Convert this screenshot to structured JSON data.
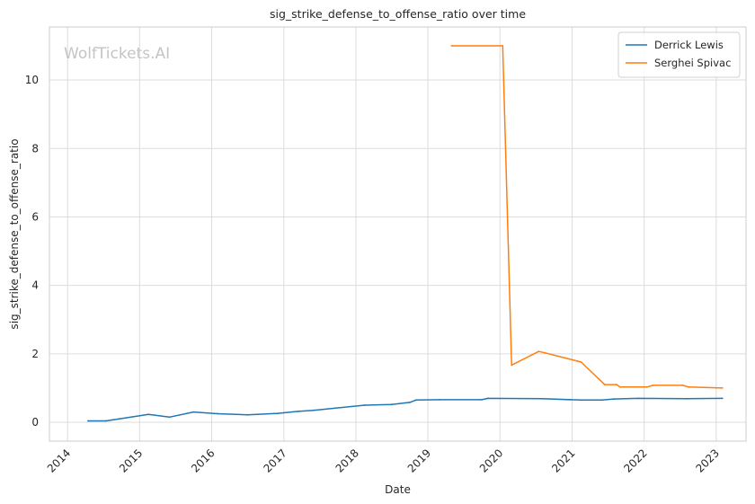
{
  "chart_data": {
    "type": "line",
    "title": "sig_strike_defense_to_offense_ratio over time",
    "xlabel": "Date",
    "ylabel": "sig_strike_defense_to_offense_ratio",
    "watermark": "WolfTickets.AI",
    "xlim": [
      "2013-10-01",
      "2023-06-01"
    ],
    "ylim": [
      -0.55,
      11.55
    ],
    "x_ticks": [
      "2014",
      "2015",
      "2016",
      "2017",
      "2018",
      "2019",
      "2020",
      "2021",
      "2022",
      "2023"
    ],
    "y_ticks": [
      0,
      2,
      4,
      6,
      8,
      10
    ],
    "grid": true,
    "legend_position": "top-right",
    "series": [
      {
        "name": "Derrick Lewis",
        "color": "#1f77b4",
        "points": [
          {
            "x": "2014-04-15",
            "y": 0.04
          },
          {
            "x": "2014-07-15",
            "y": 0.04
          },
          {
            "x": "2014-09-20",
            "y": 0.1
          },
          {
            "x": "2015-02-15",
            "y": 0.23
          },
          {
            "x": "2015-06-01",
            "y": 0.15
          },
          {
            "x": "2015-10-01",
            "y": 0.3
          },
          {
            "x": "2016-02-01",
            "y": 0.25
          },
          {
            "x": "2016-07-01",
            "y": 0.22
          },
          {
            "x": "2016-12-01",
            "y": 0.26
          },
          {
            "x": "2017-03-15",
            "y": 0.32
          },
          {
            "x": "2017-06-01",
            "y": 0.35
          },
          {
            "x": "2018-02-15",
            "y": 0.5
          },
          {
            "x": "2018-07-01",
            "y": 0.52
          },
          {
            "x": "2018-10-01",
            "y": 0.58
          },
          {
            "x": "2018-11-01",
            "y": 0.65
          },
          {
            "x": "2019-03-01",
            "y": 0.66
          },
          {
            "x": "2019-10-01",
            "y": 0.66
          },
          {
            "x": "2019-11-01",
            "y": 0.7
          },
          {
            "x": "2020-08-01",
            "y": 0.69
          },
          {
            "x": "2021-02-15",
            "y": 0.65
          },
          {
            "x": "2021-06-01",
            "y": 0.65
          },
          {
            "x": "2021-08-01",
            "y": 0.68
          },
          {
            "x": "2021-12-01",
            "y": 0.7
          },
          {
            "x": "2022-08-01",
            "y": 0.69
          },
          {
            "x": "2023-02-01",
            "y": 0.7
          }
        ]
      },
      {
        "name": "Serghei Spivac",
        "color": "#ff7f0e",
        "points": [
          {
            "x": "2019-05-01",
            "y": 11.0
          },
          {
            "x": "2020-01-15",
            "y": 11.0
          },
          {
            "x": "2020-02-29",
            "y": 1.67
          },
          {
            "x": "2020-07-15",
            "y": 2.07
          },
          {
            "x": "2020-08-15",
            "y": 2.03
          },
          {
            "x": "2021-02-15",
            "y": 1.76
          },
          {
            "x": "2021-06-15",
            "y": 1.1
          },
          {
            "x": "2021-08-15",
            "y": 1.1
          },
          {
            "x": "2021-09-01",
            "y": 1.03
          },
          {
            "x": "2022-01-15",
            "y": 1.03
          },
          {
            "x": "2022-02-15",
            "y": 1.08
          },
          {
            "x": "2022-07-15",
            "y": 1.08
          },
          {
            "x": "2022-08-15",
            "y": 1.03
          },
          {
            "x": "2023-02-01",
            "y": 1.0
          }
        ]
      }
    ]
  }
}
